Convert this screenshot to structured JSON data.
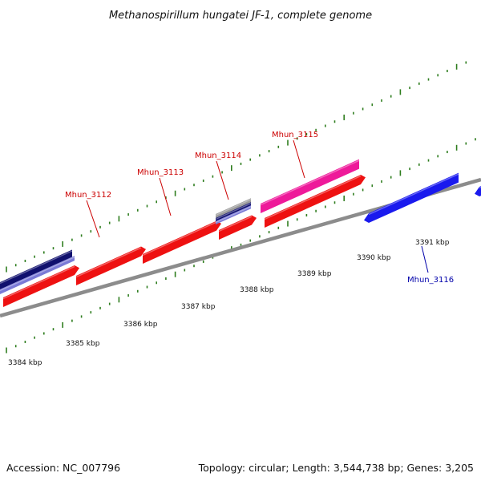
{
  "title": "Methanospirillum hungatei JF-1, complete genome",
  "footer": {
    "accession": "Accession: NC_007796",
    "summary": "Topology: circular; Length: 3,544,738 bp; Genes: 3,205"
  },
  "colors": {
    "backbone": "#8c8c8c",
    "tick": "#2e7d1e",
    "label_forward": "#cc0000",
    "label_reverse": "#0000aa",
    "cds_red": "#ee1111",
    "cds_magenta": "#ee1a9a",
    "cds_blue": "#1a1aee",
    "cds_navy": "#10106e",
    "cds_lavender": "#7a7ad6",
    "cds_gray": "#9a9a9a"
  },
  "scale_labels": [
    "3384 kbp",
    "3385 kbp",
    "3386 kbp",
    "3387 kbp",
    "3388 kbp",
    "3389 kbp",
    "3390 kbp",
    "3391 kbp"
  ],
  "gene_labels": [
    {
      "text": "Mhun_3112",
      "strand": "forward"
    },
    {
      "text": "Mhun_3113",
      "strand": "forward"
    },
    {
      "text": "Mhun_3114",
      "strand": "forward"
    },
    {
      "text": "Mhun_3115",
      "strand": "forward"
    },
    {
      "text": "Mhun_3116",
      "strand": "reverse"
    }
  ]
}
